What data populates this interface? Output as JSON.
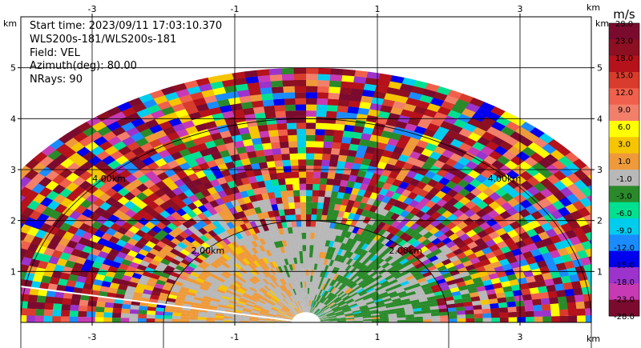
{
  "info": {
    "start_time": "Start time: 2023/09/11 17:03:10.370",
    "site": "WLS200s-181/WLS200s-181",
    "field": "Field: VEL",
    "azimuth": "Azimuth(deg): 80.00",
    "nrays": "NRays: 90"
  },
  "chart_data": {
    "type": "heatmap",
    "subtype": "ppi-radial-velocity",
    "x_unit_label": "km",
    "y_unit_label": "km",
    "x_ticks": [
      "-3",
      "-1",
      "1",
      "3"
    ],
    "x_tick_values": [
      -3,
      -1,
      1,
      3
    ],
    "y_ticks": [
      "1",
      "2",
      "3",
      "4",
      "5"
    ],
    "y_tick_values": [
      1,
      2,
      3,
      4,
      5
    ],
    "xlim": [
      -4,
      4
    ],
    "ylim": [
      0,
      6
    ],
    "grid": true,
    "range_ring_labels": [
      "2.00km",
      "4.00km"
    ],
    "range_ring_values": [
      2,
      4
    ],
    "max_range_km": 5.0,
    "azimuth_line_deg": 80,
    "colorbar": {
      "units": "m/s",
      "tick_labels": [
        "28.0",
        "23.0",
        "18.0",
        "15.0",
        "12.0",
        "9.0",
        "6.0",
        "3.0",
        "1.0",
        "-1.0",
        "-3.0",
        "-6.0",
        "-9.0",
        "-12.0",
        "-15.0",
        "-18.0",
        "-23.0",
        "-28.0"
      ],
      "colors": [
        "#7a0b2e",
        "#8c0f22",
        "#b5121b",
        "#d93b2c",
        "#f0604c",
        "#f27f6a",
        "#ffff00",
        "#f5c500",
        "#ef9a3a",
        "#b8b8b8",
        "#2a8a2a",
        "#00e090",
        "#00ccee",
        "#1a8cff",
        "#0000ee",
        "#9b33cc",
        "#c83ab4",
        "#7a0b2e"
      ]
    }
  }
}
